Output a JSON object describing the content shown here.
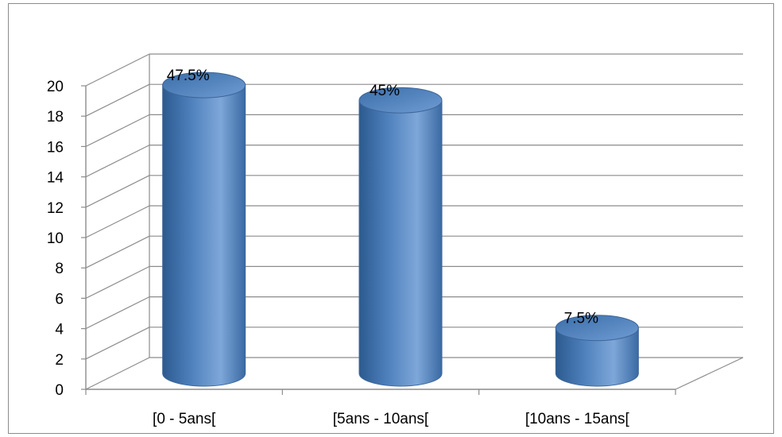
{
  "chart_data": {
    "type": "bar",
    "style": "3d-cylinder",
    "categories": [
      "[0 - 5ans[",
      "[5ans - 10ans[",
      "[10ans - 15ans["
    ],
    "values": [
      19,
      18,
      3
    ],
    "data_labels": [
      "47.5%",
      "45%",
      "7.5%"
    ],
    "ylim": [
      0,
      20
    ],
    "yticks": [
      "0",
      "2",
      "4",
      "6",
      "8",
      "10",
      "12",
      "14",
      "16",
      "18",
      "20"
    ],
    "grid": true,
    "legend": "none",
    "colors": {
      "bar": "#4f81bd",
      "bar_dark": "#2c5a8f",
      "bar_light": "#7ea7d9",
      "grid": "#8c8c8c",
      "axis": "#8c8c8c"
    }
  }
}
